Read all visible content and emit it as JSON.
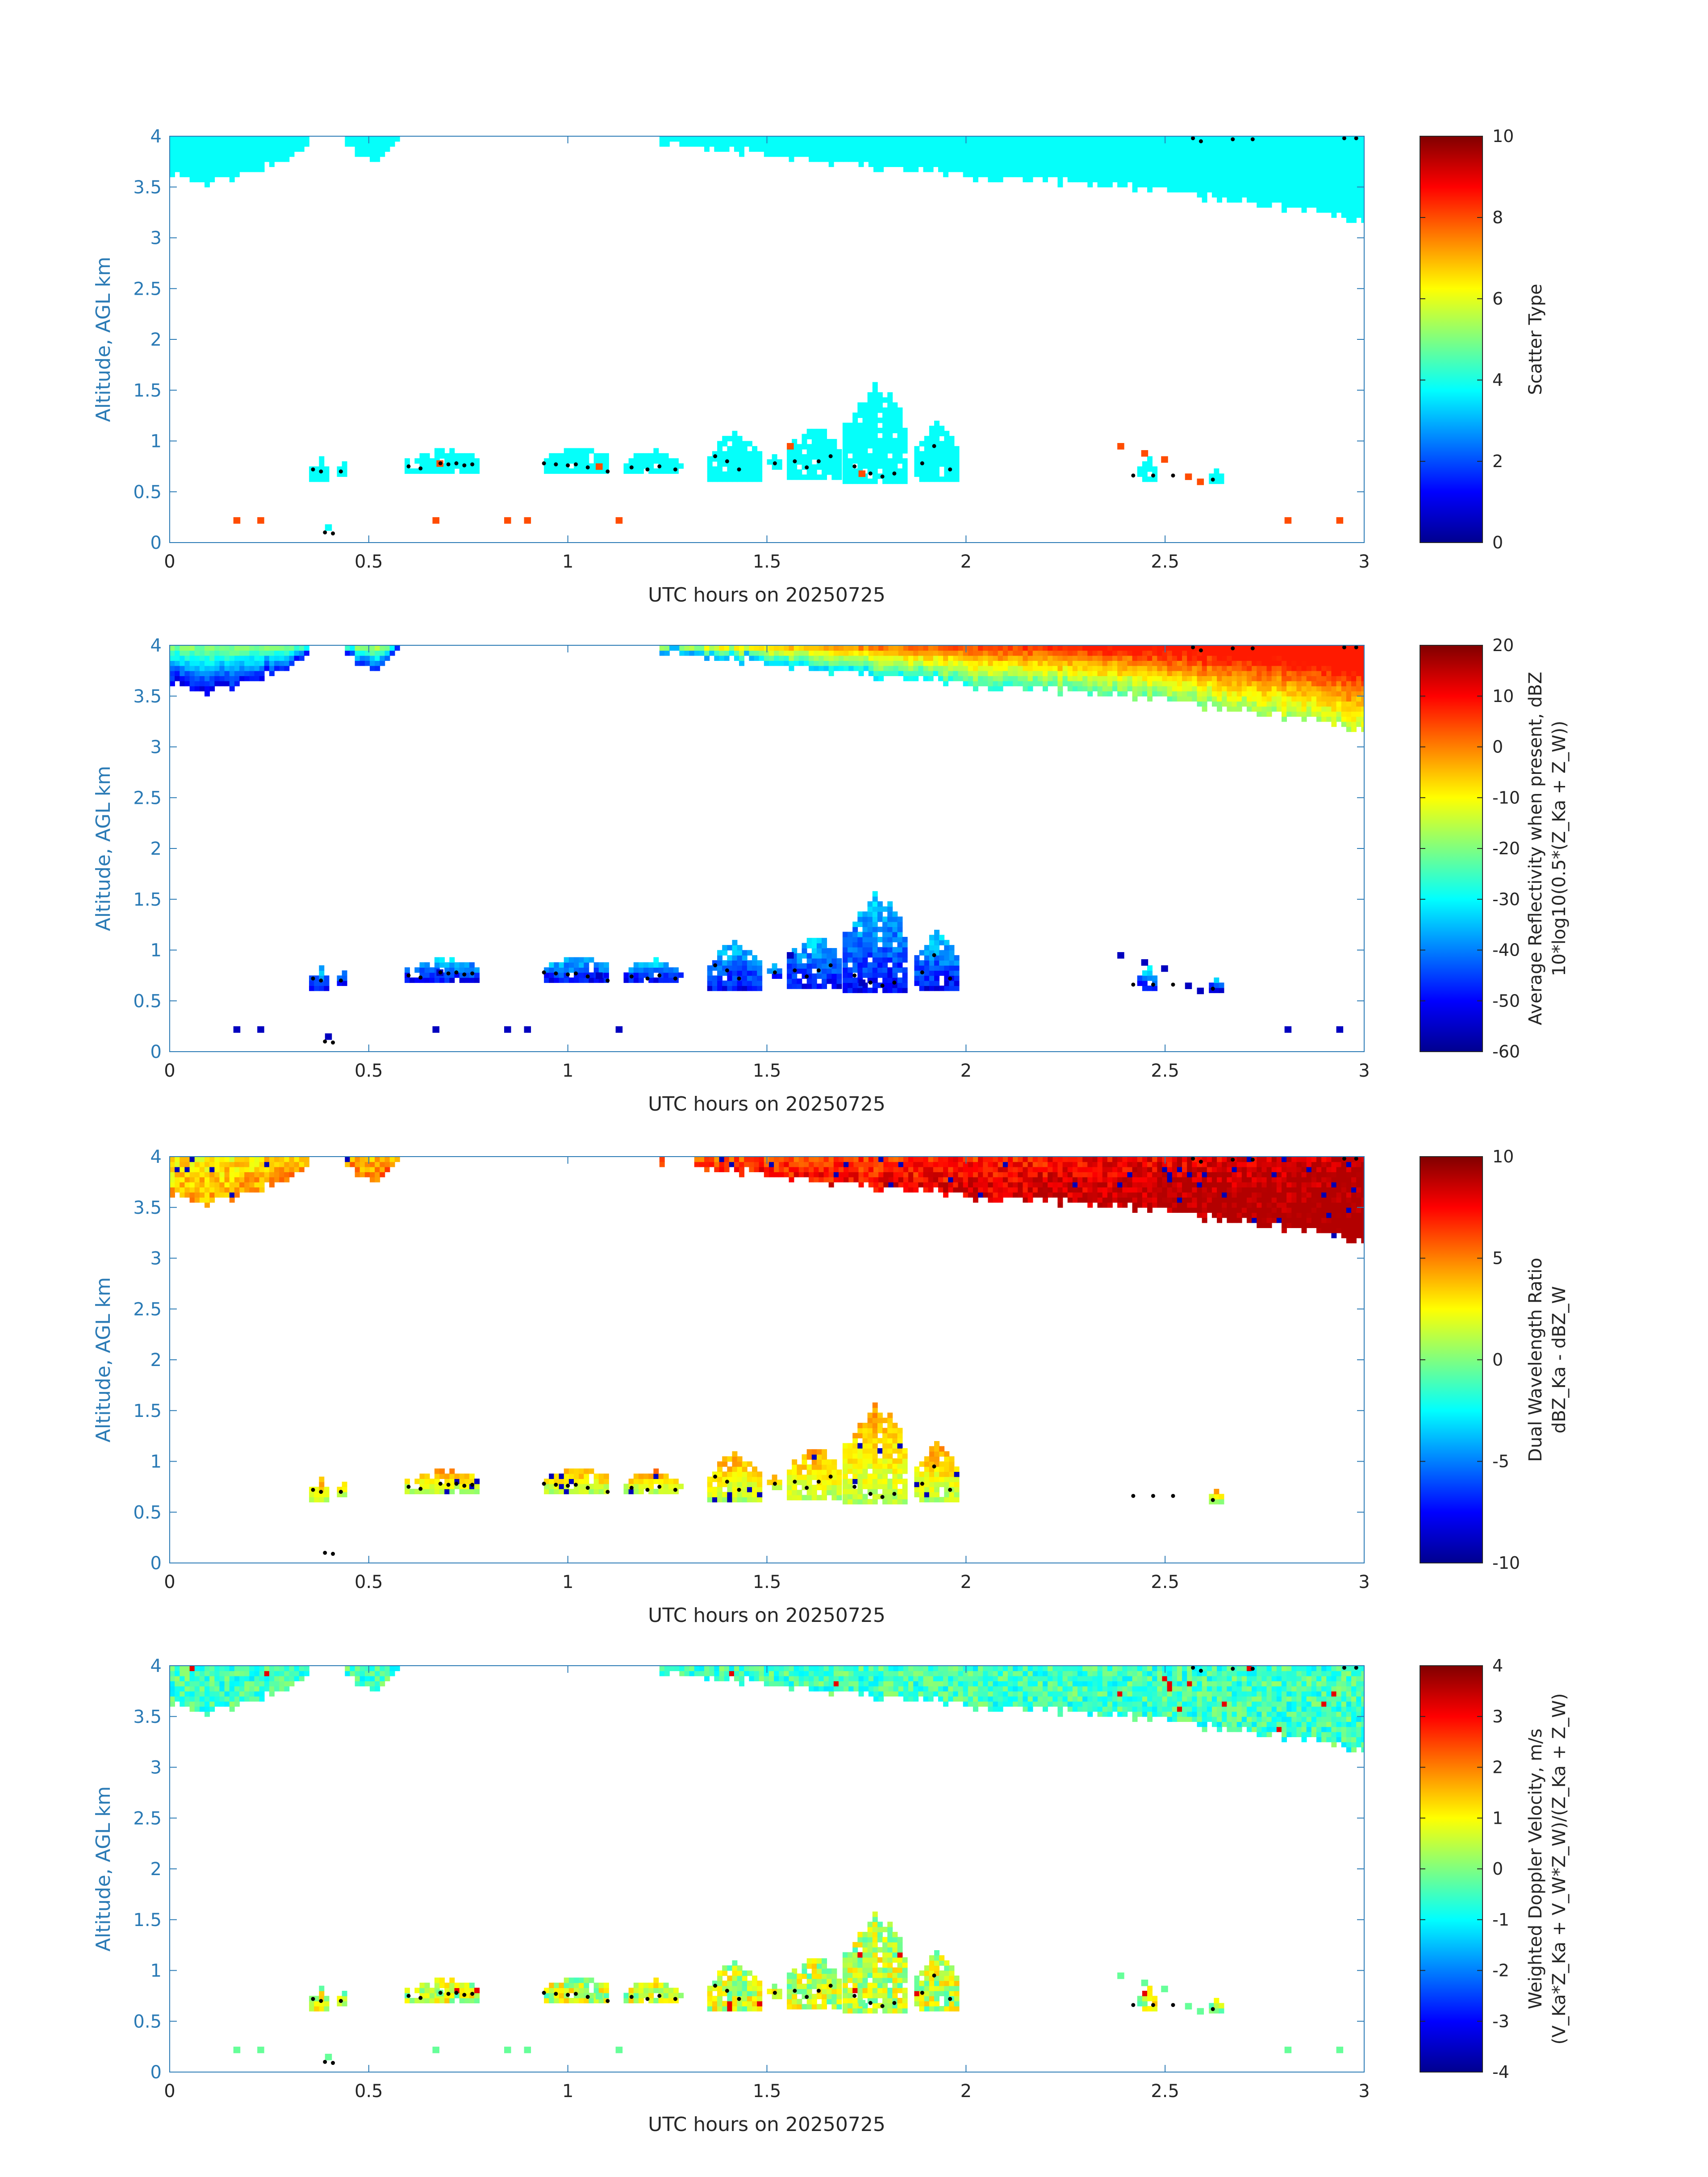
{
  "figure_title": "",
  "chart_data": [
    {
      "type": "heatmap",
      "panel": "scatter-type",
      "title": "",
      "xlabel": "UTC hours on 20250725",
      "ylabel": "Altitude, AGL km",
      "xlim": [
        0,
        3
      ],
      "ylim": [
        0,
        4
      ],
      "xticks": [
        "0",
        "0.5",
        "1",
        "1.5",
        "2",
        "2.5",
        "3"
      ],
      "yticks": [
        "0",
        "0.5",
        "1",
        "1.5",
        "2",
        "2.5",
        "3",
        "3.5",
        "4"
      ],
      "colorbar": {
        "label_lines": [
          "Scatter Type"
        ],
        "range": [
          0,
          10
        ],
        "ticks": [
          "0",
          "2",
          "4",
          "6",
          "8",
          "10"
        ]
      },
      "field": "scatter",
      "cloud_layers": [
        {
          "name": "upper cloud segment 1",
          "x": [
            0,
            0.35
          ],
          "base_km": [
            3.65,
            3.55,
            3.6,
            3.75,
            3.9
          ],
          "top_km": 4.0,
          "value": 3.8
        },
        {
          "name": "upper cloud segment 2",
          "x": [
            0.44,
            0.57
          ],
          "base_km": [
            3.9,
            3.78,
            3.95
          ],
          "top_km": 4.0,
          "value": 3.8
        },
        {
          "name": "upper cloud segment 3",
          "x": [
            1.23,
            3.0
          ],
          "base_km": [
            3.95,
            3.85,
            3.75,
            3.7,
            3.6,
            3.55,
            3.5,
            3.4,
            3.3,
            3.15
          ],
          "top_km": 4.0,
          "value": 3.8
        }
      ],
      "low_clouds": [
        {
          "x": [
            0.35,
            0.4
          ],
          "bottom_km": 0.6,
          "top_km": 0.82,
          "value": 3.8
        },
        {
          "x": [
            0.42,
            0.44
          ],
          "bottom_km": 0.65,
          "top_km": 0.78,
          "value": 3.8
        },
        {
          "x": [
            0.59,
            0.77
          ],
          "bottom_km": 0.68,
          "top_km": 0.9,
          "value": 3.8
        },
        {
          "x": [
            0.94,
            1.1
          ],
          "bottom_km": 0.68,
          "top_km": 0.9,
          "value": 3.8
        },
        {
          "x": [
            1.14,
            1.28
          ],
          "bottom_km": 0.68,
          "top_km": 0.87,
          "value": 3.8
        },
        {
          "x": [
            1.35,
            1.48
          ],
          "bottom_km": 0.6,
          "top_km": 1.05,
          "value": 3.8
        },
        {
          "x": [
            1.5,
            1.53
          ],
          "bottom_km": 0.72,
          "top_km": 0.82,
          "value": 3.8
        },
        {
          "x": [
            1.55,
            1.68
          ],
          "bottom_km": 0.62,
          "top_km": 1.1,
          "value": 3.8
        },
        {
          "x": [
            1.69,
            1.85
          ],
          "bottom_km": 0.58,
          "top_km": 1.5,
          "value": 3.8
        },
        {
          "x": [
            1.87,
            1.98
          ],
          "bottom_km": 0.6,
          "top_km": 1.15,
          "value": 3.8
        },
        {
          "x": [
            2.43,
            2.47
          ],
          "bottom_km": 0.6,
          "top_km": 0.8,
          "value": 3.8
        },
        {
          "x": [
            2.61,
            2.64
          ],
          "bottom_km": 0.58,
          "top_km": 0.7,
          "value": 3.8
        }
      ],
      "specks": [
        {
          "x": 0.16,
          "alt_km": 0.22,
          "value": 8.0
        },
        {
          "x": 0.22,
          "alt_km": 0.22,
          "value": 8.0
        },
        {
          "x": 0.39,
          "alt_km": 0.15,
          "value": 3.8
        },
        {
          "x": 0.66,
          "alt_km": 0.22,
          "value": 8.0
        },
        {
          "x": 0.84,
          "alt_km": 0.22,
          "value": 8.0
        },
        {
          "x": 0.89,
          "alt_km": 0.22,
          "value": 8.0
        },
        {
          "x": 1.12,
          "alt_km": 0.22,
          "value": 8.0
        },
        {
          "x": 0.67,
          "alt_km": 0.78,
          "value": 8.0
        },
        {
          "x": 1.07,
          "alt_km": 0.75,
          "value": 8.0
        },
        {
          "x": 1.55,
          "alt_km": 0.95,
          "value": 8.0
        },
        {
          "x": 1.73,
          "alt_km": 0.68,
          "value": 8.0
        },
        {
          "x": 2.38,
          "alt_km": 0.95,
          "value": 8.0
        },
        {
          "x": 2.44,
          "alt_km": 0.88,
          "value": 8.0
        },
        {
          "x": 2.49,
          "alt_km": 0.82,
          "value": 8.0
        },
        {
          "x": 2.55,
          "alt_km": 0.65,
          "value": 8.0
        },
        {
          "x": 2.58,
          "alt_km": 0.6,
          "value": 8.0
        },
        {
          "x": 2.8,
          "alt_km": 0.22,
          "value": 8.0
        },
        {
          "x": 2.93,
          "alt_km": 0.22,
          "value": 8.0
        }
      ]
    },
    {
      "type": "heatmap",
      "panel": "reflectivity",
      "title": "",
      "xlabel": "UTC hours on 20250725",
      "ylabel": "Altitude, AGL km",
      "xlim": [
        0,
        3
      ],
      "ylim": [
        0,
        4
      ],
      "xticks": [
        "0",
        "0.5",
        "1",
        "1.5",
        "2",
        "2.5",
        "3"
      ],
      "yticks": [
        "0",
        "0.5",
        "1",
        "1.5",
        "2",
        "2.5",
        "3",
        "3.5",
        "4"
      ],
      "colorbar": {
        "label_lines": [
          "Average Reflectivity when present, dBZ",
          "10*log10(0.5*(Z_Ka + Z_W))"
        ],
        "range": [
          -60,
          20
        ],
        "ticks": [
          "-60",
          "-50",
          "-40",
          "-30",
          "-20",
          "-10",
          "0",
          "10",
          "20"
        ]
      },
      "field": "reflectivity",
      "upper_value_range_dBZ": [
        -55,
        8
      ],
      "low_value_range_dBZ": [
        -55,
        -30
      ],
      "speck_value_dBZ": -55
    },
    {
      "type": "heatmap",
      "panel": "dual-wavelength-ratio",
      "title": "",
      "xlabel": "UTC hours on 20250725",
      "ylabel": "Altitude, AGL km",
      "xlim": [
        0,
        3
      ],
      "ylim": [
        0,
        4
      ],
      "xticks": [
        "0",
        "0.5",
        "1",
        "1.5",
        "2",
        "2.5",
        "3"
      ],
      "yticks": [
        "0",
        "0.5",
        "1",
        "1.5",
        "2",
        "2.5",
        "3",
        "3.5",
        "4"
      ],
      "colorbar": {
        "label_lines": [
          "Dual Wavelength Ratio",
          "dBZ_Ka - dBZ_W"
        ],
        "range": [
          -10,
          10
        ],
        "ticks": [
          "-10",
          "-5",
          "0",
          "5",
          "10"
        ]
      },
      "field": "dwr",
      "upper_value_range_dB": [
        1,
        9
      ],
      "low_value_range_dB": [
        0,
        6
      ]
    },
    {
      "type": "heatmap",
      "panel": "doppler-velocity",
      "title": "",
      "xlabel": "UTC hours on 20250725",
      "ylabel": "Altitude, AGL km",
      "xlim": [
        0,
        3
      ],
      "ylim": [
        0,
        4
      ],
      "xticks": [
        "0",
        "0.5",
        "1",
        "1.5",
        "2",
        "2.5",
        "3"
      ],
      "yticks": [
        "0",
        "0.5",
        "1",
        "1.5",
        "2",
        "2.5",
        "3",
        "3.5",
        "4"
      ],
      "colorbar": {
        "label_lines": [
          "Weighted Doppler Velocity, m/s",
          "(V_Ka*Z_Ka + V_W*Z_W)/(Z_Ka + Z_W)"
        ],
        "range": [
          -4,
          4
        ],
        "ticks": [
          "-4",
          "-3",
          "-2",
          "-1",
          "0",
          "1",
          "2",
          "3",
          "4"
        ]
      },
      "field": "velocity",
      "upper_value_range_ms": [
        -1.2,
        0.2
      ],
      "low_value_range_ms": [
        -0.5,
        1.5
      ],
      "speck_value_ms": -0.2
    }
  ],
  "marker_points": {
    "description": "black dots (cloud base markers)",
    "points": [
      [
        0.36,
        0.72
      ],
      [
        0.38,
        0.7
      ],
      [
        0.43,
        0.7
      ],
      [
        0.39,
        0.1
      ],
      [
        0.41,
        0.09
      ],
      [
        0.6,
        0.75
      ],
      [
        0.63,
        0.73
      ],
      [
        0.68,
        0.78
      ],
      [
        0.7,
        0.77
      ],
      [
        0.72,
        0.78
      ],
      [
        0.74,
        0.76
      ],
      [
        0.76,
        0.77
      ],
      [
        0.94,
        0.78
      ],
      [
        0.97,
        0.77
      ],
      [
        1.0,
        0.76
      ],
      [
        1.02,
        0.77
      ],
      [
        1.05,
        0.74
      ],
      [
        1.1,
        0.7
      ],
      [
        1.16,
        0.74
      ],
      [
        1.2,
        0.72
      ],
      [
        1.23,
        0.75
      ],
      [
        1.27,
        0.72
      ],
      [
        1.37,
        0.85
      ],
      [
        1.4,
        0.8
      ],
      [
        1.43,
        0.72
      ],
      [
        1.52,
        0.78
      ],
      [
        1.57,
        0.8
      ],
      [
        1.6,
        0.74
      ],
      [
        1.63,
        0.8
      ],
      [
        1.66,
        0.85
      ],
      [
        1.72,
        0.75
      ],
      [
        1.76,
        0.68
      ],
      [
        1.79,
        0.65
      ],
      [
        1.82,
        0.68
      ],
      [
        1.89,
        0.78
      ],
      [
        1.92,
        0.95
      ],
      [
        1.96,
        0.72
      ],
      [
        2.42,
        0.66
      ],
      [
        2.47,
        0.66
      ],
      [
        2.52,
        0.66
      ],
      [
        2.62,
        0.62
      ],
      [
        2.57,
        3.98
      ],
      [
        2.59,
        3.95
      ],
      [
        2.67,
        3.97
      ],
      [
        2.72,
        3.97
      ],
      [
        2.95,
        3.98
      ],
      [
        2.98,
        3.98
      ]
    ]
  }
}
